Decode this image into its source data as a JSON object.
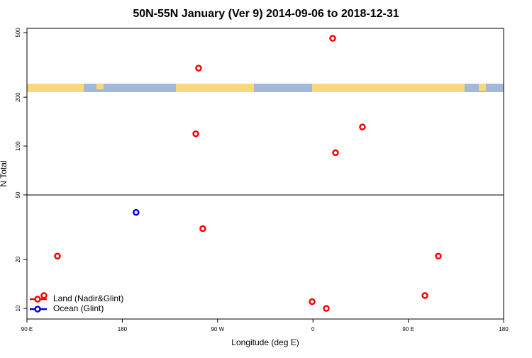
{
  "chart_data": {
    "type": "scatter",
    "title": "50N-55N January (Ver 9)   2014-09-06 to 2018-12-31",
    "x_label": "Longitude (deg E)",
    "y_label": "N Total",
    "series": [
      {
        "name": "Land (Nadir&Glint)",
        "color": "#ff0000",
        "x": [
          378.6,
          252,
          249.4,
          406.7,
          381.3,
          256,
          118.8,
          478.4,
          465.7,
          106,
          359.2,
          372.6
        ],
        "values": [
          461,
          302,
          119,
          131,
          91,
          31,
          21,
          21,
          12,
          12,
          11,
          10
        ]
      },
      {
        "name": "Ocean (Glint)",
        "color": "#0000ff",
        "x": [
          193
        ],
        "values": [
          39
        ]
      }
    ],
    "xlim": [
      90,
      540
    ],
    "xticks": [
      {
        "value": 90,
        "label": "90 E"
      },
      {
        "value": 180,
        "label": "180"
      },
      {
        "value": 270,
        "label": "90 W"
      },
      {
        "value": 360,
        "label": "0"
      },
      {
        "value": 450,
        "label": "90 E"
      },
      {
        "value": 540,
        "label": "180"
      }
    ],
    "ylim": [
      8.6,
      531
    ],
    "yticks": [
      10,
      20,
      50,
      100,
      200,
      500
    ],
    "log_y": true,
    "hline": 50,
    "legend": "bottom-left"
  }
}
